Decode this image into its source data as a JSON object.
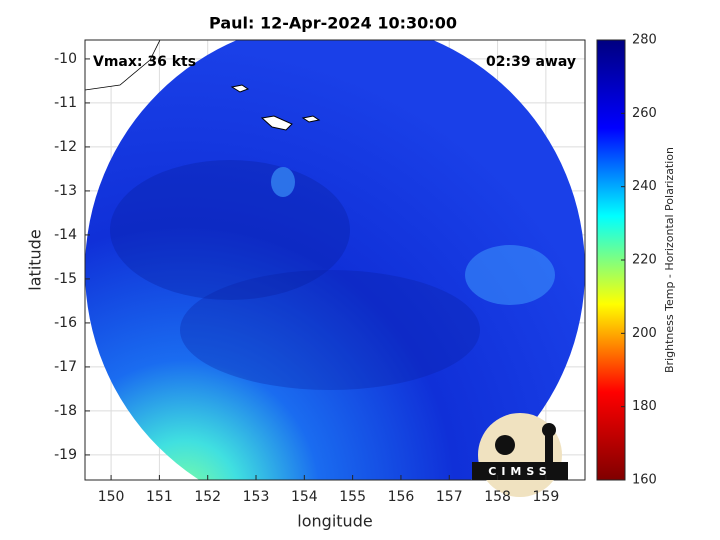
{
  "chart_data": {
    "type": "image",
    "title": "Paul: 12-Apr-2024 10:30:00",
    "annotations": [
      "Vmax: 36 kts",
      "02:39 away"
    ],
    "xlabel": "longitude",
    "ylabel": "latitude",
    "xlim": [
      149.46,
      159.81
    ],
    "xticks": [
      150,
      151,
      152,
      153,
      154,
      155,
      156,
      157,
      158,
      159
    ],
    "ylim": [
      -19.57,
      -9.57
    ],
    "yticks": [
      -10,
      -11,
      -12,
      -13,
      -14,
      -15,
      -16,
      -17,
      -18,
      -19
    ],
    "grid": true,
    "colorbar": {
      "label": "Brightness Temp - Horizontal Polarization",
      "lim": [
        160,
        280
      ],
      "ticks": [
        160,
        180,
        200,
        220,
        240,
        260,
        280
      ],
      "colormap": [
        "#800000",
        "#ff0000",
        "#ffff00",
        "#00ffff",
        "#0000ff",
        "#000080"
      ]
    },
    "logo_text": "CIMSS"
  }
}
